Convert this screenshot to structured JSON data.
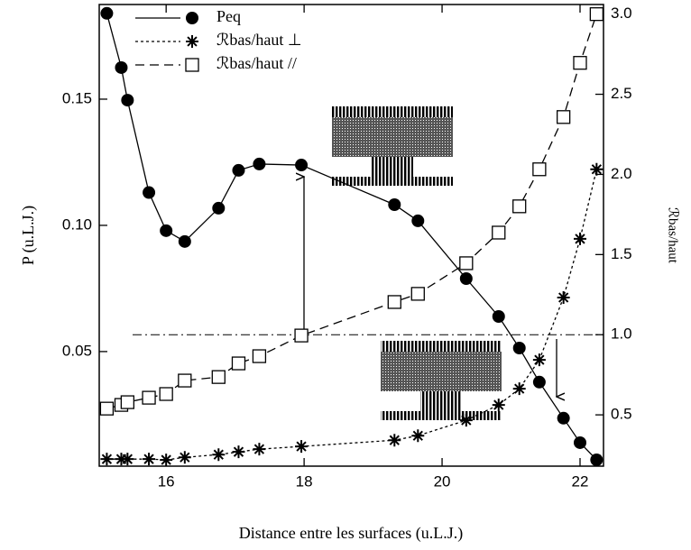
{
  "chart_data": {
    "type": "line",
    "x_label": "Distance entre les surfaces (u.L.J.)",
    "y_label": "P (u.L.J.)",
    "y2_label": "ℛbas/haut",
    "x": [
      15.14,
      15.35,
      15.44,
      15.75,
      16.0,
      16.27,
      16.76,
      17.05,
      17.35,
      17.96,
      19.31,
      19.65,
      20.35,
      20.82,
      21.12,
      21.41,
      21.76,
      22.0,
      22.24
    ],
    "series": [
      {
        "name": "Peq",
        "color": "#000000",
        "marker": "circle",
        "linestyle": "solid",
        "values": [
          0.184,
          0.1625,
          0.1496,
          0.113,
          0.0979,
          0.0936,
          0.1068,
          0.1218,
          0.1243,
          0.1239,
          0.1082,
          0.1018,
          0.0789,
          0.0639,
          0.0514,
          0.0379,
          0.0236,
          0.0139,
          0.0071
        ]
      },
      {
        "name": "ℛbas/haut ⊥",
        "color": "#000000",
        "marker": "star",
        "linestyle": "dotted",
        "axis": "y2",
        "values": [
          0.224,
          0.224,
          0.224,
          0.224,
          0.219,
          0.235,
          0.252,
          0.269,
          0.286,
          0.303,
          0.342,
          0.37,
          0.466,
          0.562,
          0.663,
          0.843,
          1.232,
          1.598,
          2.032
        ]
      },
      {
        "name": "ℛbas/haut //",
        "color": "#000000",
        "marker": "square",
        "linestyle": "dashed",
        "axis": "y2",
        "values": [
          0.539,
          0.562,
          0.579,
          0.607,
          0.63,
          0.714,
          0.736,
          0.821,
          0.866,
          0.995,
          1.204,
          1.255,
          1.446,
          1.637,
          1.801,
          2.032,
          2.358,
          2.696,
          3.0
        ]
      }
    ],
    "reference_line": {
      "axis": "y2",
      "value": 1
    },
    "xlim": [
      15.03,
      22.34
    ],
    "xticks": [
      16,
      18,
      20,
      22
    ],
    "ylim": [
      0.0046,
      0.1875
    ],
    "yticks": [
      0.05,
      {
        "value": 0.1,
        "label": "0.10"
      },
      0.15
    ],
    "y2lim": [
      0.18,
      3.06
    ],
    "y2ticks": [
      0.5,
      {
        "value": 1,
        "label": "1.0"
      },
      1.5,
      {
        "value": 2,
        "label": "2.0"
      },
      2.5,
      {
        "value": 3,
        "label": "3.0"
      }
    ],
    "legend": "upper left",
    "grid": false
  }
}
